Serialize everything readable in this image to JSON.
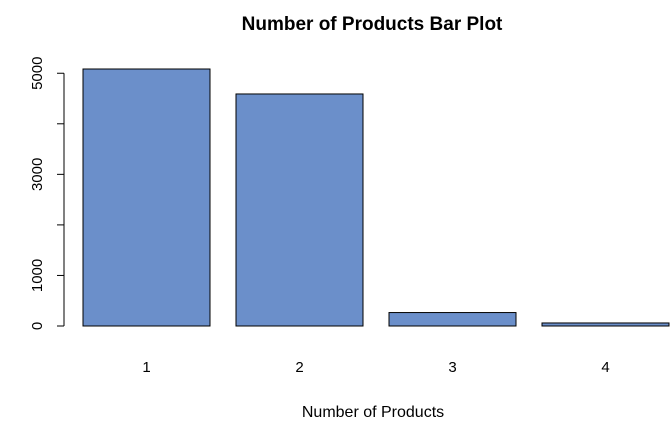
{
  "chart_data": {
    "type": "bar",
    "title": "Number of Products Bar Plot",
    "xlabel": "Number of Products",
    "ylabel": "",
    "categories": [
      "1",
      "2",
      "3",
      "4"
    ],
    "values": [
      5084,
      4590,
      266,
      60
    ],
    "ylim": [
      0,
      5084
    ],
    "yticks": [
      0,
      1000,
      3000,
      5000
    ],
    "grid": false,
    "legend": "none",
    "bar_color": "#6b8fca"
  }
}
